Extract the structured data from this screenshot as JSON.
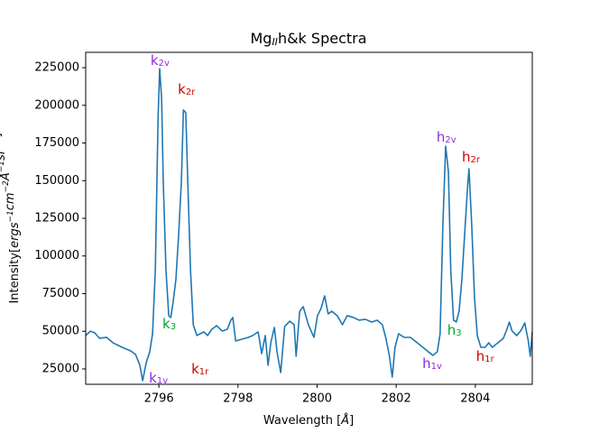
{
  "chart_data": {
    "type": "line",
    "title": {
      "text": "Mg",
      "sub": "II",
      "rest": "h&k Spectra"
    },
    "xlabel": {
      "text": "Wavelength [",
      "italic": "Å",
      "end": "]"
    },
    "ylabel": {
      "prefix": "Intensity[",
      "terms": [
        {
          "base": "ergs",
          "exp": "−1"
        },
        {
          "base": "cm",
          "exp": "−2"
        },
        {
          "base": "Å",
          "exp": "−1"
        },
        {
          "base": "sr",
          "exp": "−1"
        }
      ],
      "suffix": "]"
    },
    "xlim": [
      2794.15,
      2805.44
    ],
    "ylim": [
      14800,
      235200
    ],
    "xticks": [
      2796,
      2798,
      2800,
      2802,
      2804
    ],
    "yticks": [
      25000,
      50000,
      75000,
      100000,
      125000,
      150000,
      175000,
      200000,
      225000
    ],
    "grid": false,
    "series": [
      {
        "color": "#1f77b4",
        "x": [
          2794.15,
          2794.27,
          2794.38,
          2794.5,
          2794.68,
          2794.84,
          2795.07,
          2795.29,
          2795.41,
          2795.52,
          2795.59,
          2795.68,
          2795.77,
          2795.84,
          2795.91,
          2795.98,
          2796.02,
          2796.07,
          2796.11,
          2796.18,
          2796.25,
          2796.3,
          2796.36,
          2796.43,
          2796.5,
          2796.57,
          2796.62,
          2796.68,
          2796.73,
          2796.8,
          2796.87,
          2796.96,
          2797.05,
          2797.14,
          2797.23,
          2797.34,
          2797.46,
          2797.6,
          2797.73,
          2797.82,
          2797.87,
          2797.94,
          2798.1,
          2798.26,
          2798.37,
          2798.51,
          2798.6,
          2798.69,
          2798.76,
          2798.83,
          2798.92,
          2798.99,
          2799.08,
          2799.18,
          2799.31,
          2799.42,
          2799.47,
          2799.56,
          2799.65,
          2799.78,
          2799.92,
          2800.01,
          2800.1,
          2800.19,
          2800.28,
          2800.37,
          2800.51,
          2800.64,
          2800.76,
          2800.92,
          2801.06,
          2801.22,
          2801.38,
          2801.52,
          2801.65,
          2801.74,
          2801.83,
          2801.9,
          2801.97,
          2802.06,
          2802.2,
          2802.36,
          2802.59,
          2802.81,
          2802.93,
          2803.04,
          2803.11,
          2803.18,
          2803.25,
          2803.32,
          2803.38,
          2803.45,
          2803.52,
          2803.59,
          2803.66,
          2803.73,
          2803.8,
          2803.84,
          2803.91,
          2803.98,
          2804.05,
          2804.14,
          2804.25,
          2804.34,
          2804.43,
          2804.57,
          2804.71,
          2804.8,
          2804.86,
          2804.93,
          2805.05,
          2805.16,
          2805.25,
          2805.34,
          2805.39,
          2805.44
        ],
        "values": [
          47200,
          50100,
          48950,
          45360,
          45960,
          42370,
          39370,
          36980,
          34580,
          27400,
          17200,
          29200,
          36400,
          48350,
          90300,
          192000,
          224400,
          204000,
          150100,
          90300,
          60300,
          59100,
          69300,
          84300,
          114200,
          150100,
          196900,
          195100,
          150100,
          90300,
          54300,
          47200,
          48400,
          49550,
          47150,
          51350,
          53750,
          50150,
          51350,
          57350,
          59150,
          43550,
          44750,
          45950,
          47150,
          49550,
          35200,
          47150,
          27400,
          42350,
          52550,
          35750,
          22600,
          53150,
          56750,
          54350,
          33400,
          63300,
          66300,
          54350,
          45950,
          60350,
          65100,
          73500,
          61550,
          63300,
          60350,
          54350,
          60350,
          59150,
          57350,
          57950,
          56150,
          57350,
          54350,
          45350,
          33400,
          19600,
          39350,
          48350,
          45950,
          45950,
          41150,
          36400,
          34000,
          36400,
          48350,
          120200,
          172900,
          156100,
          90300,
          57350,
          56150,
          63300,
          84300,
          114200,
          144200,
          157900,
          120200,
          72300,
          47150,
          39350,
          39350,
          42350,
          39350,
          42350,
          45350,
          51350,
          56150,
          50150,
          47150,
          50750,
          55550,
          43550,
          33400,
          49550
        ]
      }
    ],
    "annotations": [
      {
        "text": "k",
        "sub": "2v",
        "color": "#8a2be2",
        "x": 2795.79,
        "y": 229800
      },
      {
        "text": "k",
        "sub": "2r",
        "color": "#d00000",
        "x": 2796.48,
        "y": 210600
      },
      {
        "text": "k",
        "sub": "1v",
        "color": "#8a2be2",
        "x": 2795.75,
        "y": 19000
      },
      {
        "text": "k",
        "sub": "3",
        "color": "#00a830",
        "x": 2796.09,
        "y": 54900
      },
      {
        "text": "k",
        "sub": "1r",
        "color": "#d00000",
        "x": 2796.82,
        "y": 25000
      },
      {
        "text": "h",
        "sub": "2v",
        "color": "#8a2be2",
        "x": 2803.02,
        "y": 178900
      },
      {
        "text": "h",
        "sub": "2r",
        "color": "#d00000",
        "x": 2803.66,
        "y": 165700
      },
      {
        "text": "h",
        "sub": "3",
        "color": "#00a830",
        "x": 2803.29,
        "y": 50750
      },
      {
        "text": "h",
        "sub": "1v",
        "color": "#8a2be2",
        "x": 2802.66,
        "y": 28600
      },
      {
        "text": "h",
        "sub": "1r",
        "color": "#d00000",
        "x": 2804.02,
        "y": 33400
      }
    ]
  }
}
